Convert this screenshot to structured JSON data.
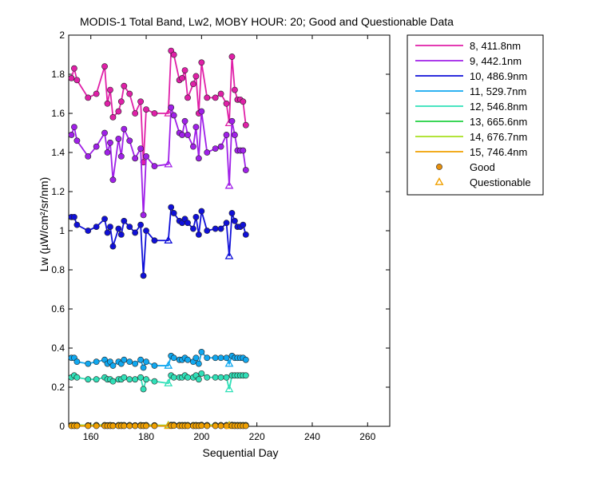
{
  "chart_data": {
    "type": "line",
    "title": "MODIS-1 Total Band,  Lw2, MOBY HOUR: 20;  Good and Questionable Data",
    "xlabel": "Sequential Day",
    "ylabel": "Lw (µW/cm²/sr/nm)",
    "xlim": [
      152,
      268
    ],
    "ylim": [
      0,
      2
    ],
    "xticks": [
      160,
      180,
      200,
      220,
      240,
      260
    ],
    "yticks": [
      0,
      0.2,
      0.4,
      0.6,
      0.8,
      1,
      1.2,
      1.4,
      1.6,
      1.8,
      2
    ],
    "ytick_labels": [
      "0",
      "0.2",
      "0.4",
      "0.6",
      "0.8",
      "1",
      "1.2",
      "1.4",
      "1.6",
      "1.8",
      "2"
    ],
    "grid": false,
    "legend_position": "outside-right-top",
    "legend_markers": [
      {
        "label": "Good",
        "marker": "circle",
        "color": "#e8900c"
      },
      {
        "label": "Questionable",
        "marker": "triangle",
        "color": "#f0a000"
      }
    ],
    "questionable_days": [
      188,
      210
    ],
    "x": [
      153,
      154,
      155,
      159,
      162,
      165,
      166,
      167,
      168,
      170,
      171,
      172,
      174,
      176,
      178,
      179,
      180,
      183,
      188,
      189,
      190,
      192,
      193,
      194,
      195,
      197,
      198,
      199,
      200,
      202,
      205,
      207,
      209,
      210,
      211,
      212,
      213,
      214,
      215,
      216
    ],
    "series": [
      {
        "name": "8, 411.8nm",
        "color": "#e020a8",
        "values": [
          1.78,
          1.83,
          1.77,
          1.68,
          1.7,
          1.84,
          1.65,
          1.72,
          1.58,
          1.61,
          1.66,
          1.74,
          1.7,
          1.6,
          1.66,
          1.35,
          1.62,
          1.6,
          1.6,
          1.92,
          1.9,
          1.77,
          1.78,
          1.82,
          1.68,
          1.75,
          1.79,
          1.6,
          1.86,
          1.68,
          1.68,
          1.7,
          1.65,
          1.55,
          1.89,
          1.72,
          1.67,
          1.67,
          1.66,
          1.54
        ]
      },
      {
        "name": "9, 442.1nm",
        "color": "#a020e8",
        "values": [
          1.49,
          1.53,
          1.46,
          1.38,
          1.43,
          1.5,
          1.4,
          1.45,
          1.26,
          1.47,
          1.38,
          1.52,
          1.46,
          1.37,
          1.42,
          1.08,
          1.38,
          1.33,
          1.34,
          1.63,
          1.59,
          1.5,
          1.49,
          1.56,
          1.49,
          1.43,
          1.53,
          1.37,
          1.61,
          1.4,
          1.42,
          1.43,
          1.49,
          1.23,
          1.56,
          1.49,
          1.41,
          1.41,
          1.41,
          1.31
        ]
      },
      {
        "name": "10, 486.9nm",
        "color": "#1010d8",
        "values": [
          1.07,
          1.07,
          1.03,
          1.0,
          1.02,
          1.06,
          0.99,
          1.02,
          0.92,
          1.01,
          0.98,
          1.05,
          1.02,
          0.99,
          1.03,
          0.77,
          1.0,
          0.95,
          0.95,
          1.12,
          1.09,
          1.05,
          1.04,
          1.06,
          1.04,
          1.01,
          1.07,
          0.98,
          1.1,
          1.0,
          1.01,
          1.01,
          1.04,
          0.87,
          1.09,
          1.05,
          1.02,
          1.02,
          1.03,
          0.98
        ]
      },
      {
        "name": "11, 529.7nm",
        "color": "#10a8f0",
        "values": [
          0.35,
          0.35,
          0.33,
          0.32,
          0.33,
          0.34,
          0.32,
          0.33,
          0.31,
          0.33,
          0.32,
          0.34,
          0.33,
          0.32,
          0.34,
          0.3,
          0.33,
          0.31,
          0.31,
          0.36,
          0.35,
          0.34,
          0.34,
          0.35,
          0.34,
          0.33,
          0.35,
          0.32,
          0.38,
          0.35,
          0.35,
          0.35,
          0.35,
          0.32,
          0.36,
          0.35,
          0.35,
          0.35,
          0.35,
          0.34
        ]
      },
      {
        "name": "12, 546.8nm",
        "color": "#30e0b8",
        "values": [
          0.25,
          0.26,
          0.25,
          0.24,
          0.24,
          0.25,
          0.24,
          0.24,
          0.23,
          0.24,
          0.24,
          0.25,
          0.24,
          0.24,
          0.25,
          0.19,
          0.24,
          0.23,
          0.22,
          0.26,
          0.25,
          0.25,
          0.25,
          0.26,
          0.25,
          0.25,
          0.26,
          0.24,
          0.27,
          0.25,
          0.25,
          0.25,
          0.25,
          0.19,
          0.26,
          0.26,
          0.26,
          0.26,
          0.26,
          0.26
        ]
      },
      {
        "name": "13, 665.6nm",
        "color": "#20d040",
        "values": [
          0.006,
          0.006,
          0.006,
          0.005,
          0.006,
          0.006,
          0.005,
          0.006,
          0.005,
          0.006,
          0.006,
          0.006,
          0.006,
          0.005,
          0.006,
          0.005,
          0.006,
          0.005,
          0.005,
          0.007,
          0.007,
          0.006,
          0.006,
          0.006,
          0.006,
          0.006,
          0.006,
          0.005,
          0.007,
          0.006,
          0.006,
          0.006,
          0.006,
          0.005,
          0.007,
          0.006,
          0.006,
          0.006,
          0.006,
          0.006
        ]
      },
      {
        "name": "14, 676.7nm",
        "color": "#a8e020",
        "values": [
          0.005,
          0.005,
          0.005,
          0.004,
          0.005,
          0.005,
          0.004,
          0.005,
          0.004,
          0.005,
          0.005,
          0.005,
          0.005,
          0.004,
          0.005,
          0.004,
          0.005,
          0.004,
          0.004,
          0.006,
          0.006,
          0.005,
          0.005,
          0.005,
          0.005,
          0.005,
          0.005,
          0.004,
          0.006,
          0.005,
          0.005,
          0.005,
          0.005,
          0.004,
          0.006,
          0.005,
          0.005,
          0.005,
          0.005,
          0.005
        ]
      },
      {
        "name": "15, 746.4nm",
        "color": "#f0a000",
        "values": [
          0.002,
          0.002,
          0.002,
          0.002,
          0.002,
          0.002,
          0.002,
          0.002,
          0.002,
          0.002,
          0.002,
          0.002,
          0.002,
          0.002,
          0.002,
          0.002,
          0.002,
          0.002,
          0.002,
          0.003,
          0.003,
          0.002,
          0.002,
          0.002,
          0.002,
          0.002,
          0.002,
          0.002,
          0.003,
          0.002,
          0.002,
          0.002,
          0.002,
          0.002,
          0.003,
          0.002,
          0.002,
          0.002,
          0.002,
          0.002
        ]
      }
    ]
  }
}
